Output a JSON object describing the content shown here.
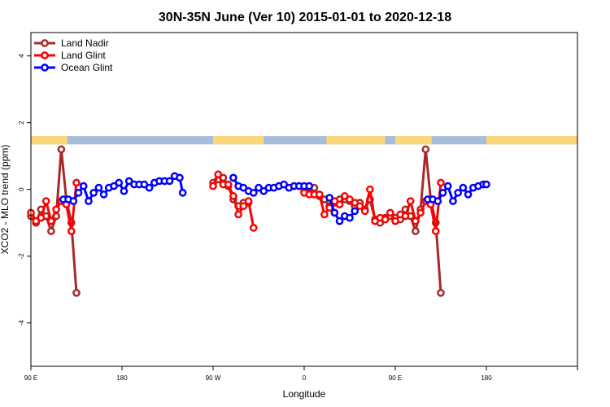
{
  "chart_data": {
    "type": "line",
    "title": "30N-35N June (Ver 10)   2015-01-01 to 2020-12-18",
    "xlabel": "Longitude",
    "ylabel": "XCO2 - MLO trend (ppm)",
    "xlim": [
      0,
      540
    ],
    "ylim": [
      -5.3,
      4.7
    ],
    "x_ticks": [
      {
        "value": 0,
        "label": "90 E"
      },
      {
        "value": 90,
        "label": "180"
      },
      {
        "value": 180,
        "label": "90 W"
      },
      {
        "value": 270,
        "label": "0"
      },
      {
        "value": 360,
        "label": "90 E"
      },
      {
        "value": 450,
        "label": "180"
      }
    ],
    "y_ticks": [
      {
        "value": -4,
        "label": "-4"
      },
      {
        "value": -2,
        "label": "-2"
      },
      {
        "value": 0,
        "label": "0"
      },
      {
        "value": 2,
        "label": "2"
      },
      {
        "value": 4,
        "label": "4"
      }
    ],
    "grid": false,
    "legend_position": "top-left",
    "land_mask": {
      "band": [
        1.35,
        1.6
      ],
      "land_color": "#fcd677",
      "ocean_color": "#a7bddb",
      "land_ranges": [
        [
          0,
          36
        ],
        [
          180,
          230
        ],
        [
          292,
          350
        ],
        [
          360,
          396
        ],
        [
          450,
          540
        ]
      ]
    },
    "series": [
      {
        "name": "Land Nadir",
        "color": "#a52a2a",
        "points": [
          [
            0,
            -0.8
          ],
          [
            5,
            -1.0
          ],
          [
            10,
            -0.6
          ],
          [
            15,
            -0.8
          ],
          [
            20,
            -1.25
          ],
          [
            25,
            -0.8
          ],
          [
            30,
            1.2
          ],
          [
            35,
            -0.3
          ],
          [
            40,
            -1.0
          ],
          [
            45,
            -3.1
          ],
          [
            180,
            0.2
          ],
          [
            185,
            0.3
          ],
          [
            190,
            0.35
          ],
          [
            195,
            0.1
          ],
          [
            200,
            -0.3
          ],
          [
            205,
            -0.5
          ],
          [
            210,
            -0.4
          ],
          [
            215,
            -0.4
          ],
          [
            270,
            0.0
          ],
          [
            275,
            -0.1
          ],
          [
            280,
            0.05
          ],
          [
            285,
            -0.2
          ],
          [
            290,
            -0.3
          ],
          [
            295,
            -0.5
          ],
          [
            300,
            -0.4
          ],
          [
            305,
            -0.3
          ],
          [
            310,
            -0.3
          ],
          [
            315,
            -0.35
          ],
          [
            320,
            -0.5
          ],
          [
            325,
            -0.4
          ],
          [
            330,
            -0.6
          ],
          [
            335,
            -0.3
          ],
          [
            340,
            -0.9
          ],
          [
            345,
            -1.0
          ],
          [
            350,
            -0.85
          ],
          [
            355,
            -0.8
          ],
          [
            360,
            -0.85
          ],
          [
            365,
            -0.9
          ],
          [
            370,
            -0.6
          ],
          [
            375,
            -0.8
          ],
          [
            380,
            -1.25
          ],
          [
            385,
            -0.6
          ],
          [
            390,
            1.2
          ],
          [
            395,
            -0.3
          ],
          [
            400,
            -1.0
          ],
          [
            405,
            -3.1
          ]
        ]
      },
      {
        "name": "Land Glint",
        "color": "#ff0000",
        "points": [
          [
            0,
            -0.7
          ],
          [
            5,
            -0.95
          ],
          [
            10,
            -0.85
          ],
          [
            15,
            -0.35
          ],
          [
            20,
            -0.95
          ],
          [
            25,
            -0.6
          ],
          [
            30,
            -0.35
          ],
          [
            35,
            -0.45
          ],
          [
            40,
            -1.25
          ],
          [
            45,
            0.2
          ],
          [
            180,
            0.1
          ],
          [
            185,
            0.45
          ],
          [
            190,
            0.15
          ],
          [
            195,
            0.15
          ],
          [
            200,
            -0.2
          ],
          [
            205,
            -0.75
          ],
          [
            210,
            -0.5
          ],
          [
            215,
            -0.35
          ],
          [
            220,
            -1.15
          ],
          [
            270,
            -0.1
          ],
          [
            275,
            -0.15
          ],
          [
            280,
            -0.15
          ],
          [
            285,
            -0.15
          ],
          [
            290,
            -0.75
          ],
          [
            295,
            -0.55
          ],
          [
            300,
            -0.35
          ],
          [
            305,
            -0.45
          ],
          [
            310,
            -0.2
          ],
          [
            315,
            -0.3
          ],
          [
            320,
            -0.4
          ],
          [
            325,
            -0.5
          ],
          [
            330,
            -0.65
          ],
          [
            335,
            0.0
          ],
          [
            340,
            -0.95
          ],
          [
            345,
            -0.85
          ],
          [
            350,
            -0.9
          ],
          [
            355,
            -0.7
          ],
          [
            360,
            -0.95
          ],
          [
            365,
            -0.75
          ],
          [
            370,
            -0.8
          ],
          [
            375,
            -0.35
          ],
          [
            380,
            -0.95
          ],
          [
            385,
            -0.7
          ],
          [
            390,
            -0.35
          ],
          [
            395,
            -0.45
          ],
          [
            400,
            -1.25
          ],
          [
            405,
            0.2
          ]
        ]
      },
      {
        "name": "Ocean Glint",
        "color": "#0000ff",
        "points": [
          [
            32,
            -0.3
          ],
          [
            37,
            -0.3
          ],
          [
            42,
            -0.35
          ],
          [
            47,
            -0.1
          ],
          [
            52,
            0.1
          ],
          [
            57,
            -0.35
          ],
          [
            62,
            -0.1
          ],
          [
            67,
            0.05
          ],
          [
            72,
            -0.15
          ],
          [
            77,
            0.05
          ],
          [
            82,
            0.1
          ],
          [
            87,
            0.2
          ],
          [
            92,
            -0.05
          ],
          [
            97,
            0.25
          ],
          [
            102,
            0.15
          ],
          [
            107,
            0.15
          ],
          [
            112,
            0.15
          ],
          [
            117,
            0.05
          ],
          [
            122,
            0.2
          ],
          [
            127,
            0.25
          ],
          [
            132,
            0.25
          ],
          [
            137,
            0.25
          ],
          [
            142,
            0.4
          ],
          [
            147,
            0.35
          ],
          [
            150,
            -0.1
          ],
          [
            200,
            0.35
          ],
          [
            205,
            0.1
          ],
          [
            210,
            0.05
          ],
          [
            215,
            -0.05
          ],
          [
            220,
            -0.1
          ],
          [
            225,
            0.05
          ],
          [
            230,
            -0.05
          ],
          [
            235,
            0.05
          ],
          [
            240,
            0.05
          ],
          [
            245,
            0.1
          ],
          [
            250,
            0.15
          ],
          [
            255,
            0.05
          ],
          [
            260,
            0.1
          ],
          [
            265,
            0.1
          ],
          [
            270,
            0.1
          ],
          [
            275,
            0.1
          ],
          [
            295,
            -0.25
          ],
          [
            300,
            -0.7
          ],
          [
            305,
            -0.95
          ],
          [
            310,
            -0.8
          ],
          [
            315,
            -0.85
          ],
          [
            320,
            -0.65
          ],
          [
            392,
            -0.3
          ],
          [
            397,
            -0.3
          ],
          [
            402,
            -0.35
          ],
          [
            407,
            -0.1
          ],
          [
            412,
            0.1
          ],
          [
            417,
            -0.35
          ],
          [
            422,
            -0.1
          ],
          [
            427,
            0.05
          ],
          [
            432,
            -0.15
          ],
          [
            437,
            0.05
          ],
          [
            442,
            0.1
          ],
          [
            447,
            0.15
          ],
          [
            450,
            0.15
          ]
        ]
      }
    ]
  }
}
